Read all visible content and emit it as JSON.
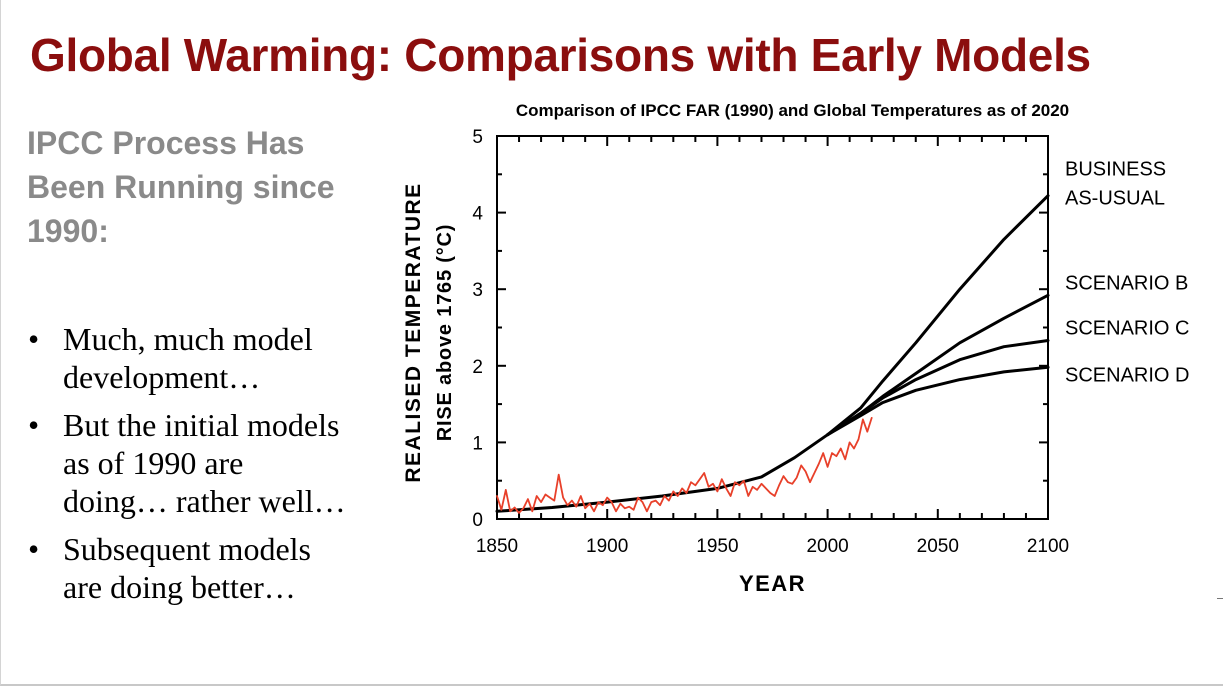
{
  "slide": {
    "title": "Global Warming: Comparisons with Early Models",
    "subhead_lines": [
      "IPCC Process Has",
      "Been Running since",
      "1990:"
    ],
    "bullets": [
      {
        "lines": [
          "Much, much model",
          "development…"
        ]
      },
      {
        "lines": [
          "But the initial models",
          "as of 1990 are",
          "doing… rather well…"
        ]
      },
      {
        "lines": [
          "Subsequent models",
          "are doing better…"
        ]
      }
    ]
  },
  "chart_data": {
    "type": "line",
    "title": "Comparison of IPCC FAR (1990) and Global Temperatures as of 2020",
    "xlabel": "YEAR",
    "ylabel_lines": [
      "REALISED TEMPERATURE",
      "RISE above 1765 (°C)"
    ],
    "xlim": [
      1850,
      2100
    ],
    "ylim": [
      0,
      5
    ],
    "x_ticks": [
      1850,
      1900,
      1950,
      2000,
      2050,
      2100
    ],
    "y_ticks": [
      0,
      1,
      2,
      3,
      4,
      5
    ],
    "series": [
      {
        "name": "BUSINESS AS-USUAL",
        "label_lines": [
          "BUSINESS",
          "AS-USUAL"
        ],
        "color": "#000000",
        "x": [
          1850,
          1875,
          1900,
          1925,
          1950,
          1970,
          1985,
          2000,
          2015,
          2025,
          2040,
          2060,
          2080,
          2100
        ],
        "y": [
          0.1,
          0.15,
          0.22,
          0.3,
          0.4,
          0.55,
          0.8,
          1.1,
          1.45,
          1.8,
          2.3,
          3.0,
          3.65,
          4.22
        ]
      },
      {
        "name": "SCENARIO B",
        "label_lines": [
          "SCENARIO B"
        ],
        "color": "#000000",
        "x": [
          2000,
          2015,
          2025,
          2040,
          2060,
          2080,
          2100
        ],
        "y": [
          1.1,
          1.38,
          1.6,
          1.9,
          2.3,
          2.62,
          2.92
        ]
      },
      {
        "name": "SCENARIO C",
        "label_lines": [
          "SCENARIO C"
        ],
        "color": "#000000",
        "x": [
          2000,
          2015,
          2025,
          2040,
          2060,
          2080,
          2100
        ],
        "y": [
          1.1,
          1.38,
          1.58,
          1.82,
          2.08,
          2.25,
          2.33
        ]
      },
      {
        "name": "SCENARIO D",
        "label_lines": [
          "SCENARIO D"
        ],
        "color": "#000000",
        "x": [
          2000,
          2015,
          2025,
          2040,
          2060,
          2080,
          2100
        ],
        "y": [
          1.1,
          1.35,
          1.52,
          1.68,
          1.82,
          1.92,
          1.98
        ]
      },
      {
        "name": "Observed global temperature",
        "label_lines": [],
        "color": "#e8402a",
        "x": [
          1850,
          1852,
          1854,
          1856,
          1858,
          1860,
          1862,
          1864,
          1866,
          1868,
          1870,
          1872,
          1874,
          1876,
          1878,
          1880,
          1882,
          1884,
          1886,
          1888,
          1890,
          1892,
          1894,
          1896,
          1898,
          1900,
          1902,
          1904,
          1906,
          1908,
          1910,
          1912,
          1914,
          1916,
          1918,
          1920,
          1922,
          1924,
          1926,
          1928,
          1930,
          1932,
          1934,
          1936,
          1938,
          1940,
          1942,
          1944,
          1946,
          1948,
          1950,
          1952,
          1954,
          1956,
          1958,
          1960,
          1962,
          1964,
          1966,
          1968,
          1970,
          1972,
          1974,
          1976,
          1978,
          1980,
          1982,
          1984,
          1986,
          1988,
          1990,
          1992,
          1994,
          1996,
          1998,
          2000,
          2002,
          2004,
          2006,
          2008,
          2010,
          2012,
          2014,
          2016,
          2018,
          2020
        ],
        "y": [
          0.3,
          0.12,
          0.38,
          0.1,
          0.15,
          0.08,
          0.14,
          0.26,
          0.1,
          0.3,
          0.22,
          0.32,
          0.28,
          0.24,
          0.58,
          0.28,
          0.18,
          0.24,
          0.16,
          0.3,
          0.14,
          0.2,
          0.1,
          0.22,
          0.18,
          0.28,
          0.22,
          0.1,
          0.2,
          0.14,
          0.16,
          0.12,
          0.28,
          0.22,
          0.1,
          0.22,
          0.24,
          0.18,
          0.3,
          0.24,
          0.36,
          0.3,
          0.4,
          0.34,
          0.48,
          0.44,
          0.52,
          0.6,
          0.42,
          0.46,
          0.36,
          0.52,
          0.4,
          0.3,
          0.48,
          0.44,
          0.5,
          0.3,
          0.42,
          0.38,
          0.46,
          0.4,
          0.34,
          0.3,
          0.44,
          0.56,
          0.48,
          0.46,
          0.54,
          0.7,
          0.62,
          0.48,
          0.6,
          0.72,
          0.86,
          0.68,
          0.86,
          0.82,
          0.92,
          0.78,
          1.0,
          0.92,
          1.04,
          1.3,
          1.14,
          1.32
        ]
      }
    ]
  }
}
